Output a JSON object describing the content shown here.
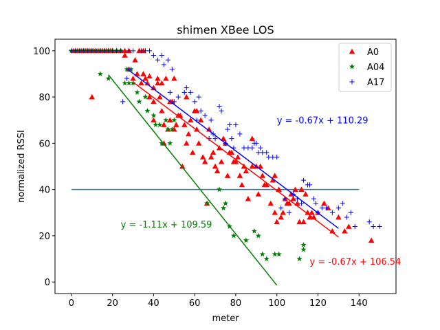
{
  "chart_data": {
    "type": "scatter",
    "title": "shimen XBee LOS",
    "xlabel": "meter",
    "ylabel": "normalized RSSI",
    "xlim": [
      -8,
      158
    ],
    "ylim": [
      -5,
      105
    ],
    "xticks": [
      0,
      20,
      40,
      60,
      80,
      100,
      120,
      140
    ],
    "yticks": [
      0,
      20,
      40,
      60,
      80,
      100
    ],
    "grid": false,
    "legend_position": "top-right",
    "threshold": {
      "y": 40,
      "x_range": [
        0,
        140
      ],
      "color": "#1f77b4"
    },
    "series": [
      {
        "name": "A0",
        "marker": "triangle",
        "color": "#ff0000",
        "points": [
          [
            1,
            100
          ],
          [
            2,
            100
          ],
          [
            3,
            100
          ],
          [
            4,
            100
          ],
          [
            5,
            100
          ],
          [
            6,
            100
          ],
          [
            7,
            100
          ],
          [
            8,
            100
          ],
          [
            9,
            100
          ],
          [
            10,
            100
          ],
          [
            11,
            100
          ],
          [
            12,
            100
          ],
          [
            13,
            100
          ],
          [
            14,
            100
          ],
          [
            15,
            100
          ],
          [
            16,
            100
          ],
          [
            17,
            100
          ],
          [
            18,
            100
          ],
          [
            19,
            100
          ],
          [
            20,
            100
          ],
          [
            22,
            100
          ],
          [
            24,
            100
          ],
          [
            26,
            100
          ],
          [
            28,
            100
          ],
          [
            33,
            100
          ],
          [
            35,
            100
          ],
          [
            10,
            80
          ],
          [
            26,
            98
          ],
          [
            28,
            92
          ],
          [
            30,
            88
          ],
          [
            31,
            96
          ],
          [
            32,
            90
          ],
          [
            34,
            86
          ],
          [
            35,
            90
          ],
          [
            36,
            88
          ],
          [
            37,
            86
          ],
          [
            38,
            80
          ],
          [
            38,
            89
          ],
          [
            40,
            84
          ],
          [
            40,
            78
          ],
          [
            40,
            70
          ],
          [
            42,
            88
          ],
          [
            42,
            86
          ],
          [
            43,
            80
          ],
          [
            44,
            74
          ],
          [
            44,
            86
          ],
          [
            45,
            60
          ],
          [
            45,
            68
          ],
          [
            46,
            88
          ],
          [
            47,
            66
          ],
          [
            48,
            70
          ],
          [
            48,
            78
          ],
          [
            49,
            78
          ],
          [
            50,
            88
          ],
          [
            50,
            66
          ],
          [
            51,
            68
          ],
          [
            52,
            72
          ],
          [
            53,
            72
          ],
          [
            54,
            50
          ],
          [
            55,
            68
          ],
          [
            56,
            60
          ],
          [
            56,
            80
          ],
          [
            57,
            64
          ],
          [
            58,
            70
          ],
          [
            59,
            56
          ],
          [
            60,
            74
          ],
          [
            61,
            74
          ],
          [
            61,
            66
          ],
          [
            62,
            60
          ],
          [
            63,
            70
          ],
          [
            64,
            54
          ],
          [
            65,
            52
          ],
          [
            66,
            34
          ],
          [
            67,
            66
          ],
          [
            68,
            54
          ],
          [
            69,
            56
          ],
          [
            70,
            50
          ],
          [
            71,
            48
          ],
          [
            72,
            58
          ],
          [
            73,
            52
          ],
          [
            74,
            62
          ],
          [
            75,
            60
          ],
          [
            76,
            46
          ],
          [
            77,
            56
          ],
          [
            78,
            56
          ],
          [
            79,
            52
          ],
          [
            80,
            52
          ],
          [
            81,
            54
          ],
          [
            82,
            46
          ],
          [
            83,
            42
          ],
          [
            84,
            50
          ],
          [
            85,
            48
          ],
          [
            86,
            36
          ],
          [
            88,
            62
          ],
          [
            88,
            50
          ],
          [
            90,
            50
          ],
          [
            91,
            38
          ],
          [
            92,
            50
          ],
          [
            93,
            46
          ],
          [
            94,
            42
          ],
          [
            95,
            42
          ],
          [
            97,
            34
          ],
          [
            98,
            44
          ],
          [
            99,
            46
          ],
          [
            99,
            30
          ],
          [
            100,
            26
          ],
          [
            101,
            40
          ],
          [
            102,
            28
          ],
          [
            103,
            30
          ],
          [
            104,
            36
          ],
          [
            105,
            34
          ],
          [
            106,
            34
          ],
          [
            107,
            38
          ],
          [
            108,
            36
          ],
          [
            109,
            40
          ],
          [
            110,
            34
          ],
          [
            111,
            26
          ],
          [
            112,
            40
          ],
          [
            113,
            26
          ],
          [
            114,
            38
          ],
          [
            115,
            30
          ],
          [
            116,
            28
          ],
          [
            117,
            30
          ],
          [
            118,
            28
          ],
          [
            120,
            30
          ],
          [
            123,
            34
          ],
          [
            125,
            32
          ],
          [
            127,
            22
          ],
          [
            130,
            28
          ],
          [
            133,
            22
          ],
          [
            135,
            24
          ],
          [
            146,
            18
          ]
        ]
      },
      {
        "name": "A04",
        "marker": "star",
        "color": "#008000",
        "points": [
          [
            0,
            100
          ],
          [
            2,
            100
          ],
          [
            4,
            100
          ],
          [
            6,
            100
          ],
          [
            8,
            100
          ],
          [
            10,
            100
          ],
          [
            12,
            100
          ],
          [
            14,
            100
          ],
          [
            16,
            100
          ],
          [
            18,
            100
          ],
          [
            20,
            100
          ],
          [
            22,
            100
          ],
          [
            24,
            100
          ],
          [
            14,
            90
          ],
          [
            18,
            88
          ],
          [
            26,
            86
          ],
          [
            27,
            92
          ],
          [
            28,
            86
          ],
          [
            29,
            92
          ],
          [
            30,
            86
          ],
          [
            32,
            82
          ],
          [
            33,
            78
          ],
          [
            36,
            80
          ],
          [
            37,
            74
          ],
          [
            40,
            72
          ],
          [
            41,
            68
          ],
          [
            43,
            68
          ],
          [
            44,
            60
          ],
          [
            46,
            70
          ],
          [
            47,
            66
          ],
          [
            48,
            60
          ],
          [
            49,
            66
          ],
          [
            50,
            70
          ],
          [
            66,
            34
          ],
          [
            72,
            40
          ],
          [
            74,
            32
          ],
          [
            75,
            34
          ],
          [
            77,
            24
          ],
          [
            79,
            20
          ],
          [
            85,
            18
          ],
          [
            89,
            22
          ],
          [
            91,
            20
          ],
          [
            93,
            12
          ],
          [
            95,
            10
          ],
          [
            99,
            12
          ],
          [
            101,
            12
          ],
          [
            111,
            10
          ],
          [
            113,
            16
          ],
          [
            113,
            14
          ]
        ]
      },
      {
        "name": "A17",
        "marker": "plus",
        "color": "#0000ff",
        "points": [
          [
            0,
            100
          ],
          [
            2,
            100
          ],
          [
            4,
            100
          ],
          [
            6,
            100
          ],
          [
            8,
            100
          ],
          [
            10,
            100
          ],
          [
            12,
            100
          ],
          [
            14,
            100
          ],
          [
            16,
            100
          ],
          [
            18,
            100
          ],
          [
            20,
            100
          ],
          [
            22,
            100
          ],
          [
            24,
            100
          ],
          [
            28,
            100
          ],
          [
            30,
            100
          ],
          [
            34,
            100
          ],
          [
            36,
            100
          ],
          [
            38,
            100
          ],
          [
            25,
            78
          ],
          [
            27,
            88
          ],
          [
            28,
            92
          ],
          [
            40,
            98
          ],
          [
            42,
            96
          ],
          [
            44,
            98
          ],
          [
            45,
            94
          ],
          [
            47,
            96
          ],
          [
            48,
            82
          ],
          [
            49,
            92
          ],
          [
            50,
            78
          ],
          [
            52,
            80
          ],
          [
            55,
            82
          ],
          [
            56,
            84
          ],
          [
            58,
            82
          ],
          [
            60,
            78
          ],
          [
            61,
            70
          ],
          [
            62,
            80
          ],
          [
            63,
            74
          ],
          [
            65,
            72
          ],
          [
            67,
            62
          ],
          [
            68,
            70
          ],
          [
            69,
            64
          ],
          [
            70,
            62
          ],
          [
            72,
            76
          ],
          [
            73,
            74
          ],
          [
            75,
            60
          ],
          [
            76,
            66
          ],
          [
            77,
            68
          ],
          [
            78,
            62
          ],
          [
            79,
            58
          ],
          [
            80,
            68
          ],
          [
            82,
            64
          ],
          [
            84,
            58
          ],
          [
            86,
            58
          ],
          [
            88,
            58
          ],
          [
            89,
            60
          ],
          [
            90,
            60
          ],
          [
            91,
            56
          ],
          [
            92,
            58
          ],
          [
            93,
            56
          ],
          [
            95,
            56
          ],
          [
            96,
            54
          ],
          [
            98,
            54
          ],
          [
            100,
            54
          ],
          [
            102,
            32
          ],
          [
            104,
            36
          ],
          [
            106,
            30
          ],
          [
            108,
            38
          ],
          [
            110,
            36
          ],
          [
            112,
            34
          ],
          [
            113,
            44
          ],
          [
            115,
            42
          ],
          [
            116,
            42
          ],
          [
            118,
            36
          ],
          [
            119,
            34
          ],
          [
            120,
            30
          ],
          [
            122,
            32
          ],
          [
            124,
            32
          ],
          [
            127,
            30
          ],
          [
            130,
            32
          ],
          [
            132,
            34
          ],
          [
            134,
            28
          ],
          [
            136,
            30
          ],
          [
            138,
            24
          ],
          [
            145,
            26
          ],
          [
            147,
            24
          ],
          [
            150,
            24
          ]
        ]
      }
    ],
    "fits": [
      {
        "series": "A0",
        "label": "y = -0.67x + 106.54",
        "slope": -0.67,
        "intercept": 106.54,
        "x_range": [
          30,
          130
        ],
        "color": "#ff0000"
      },
      {
        "series": "A04",
        "label": "y = -1.11x + 109.59",
        "slope": -1.11,
        "intercept": 109.59,
        "x_range": [
          18,
          100
        ],
        "color": "#008000"
      },
      {
        "series": "A17",
        "label": "y = -0.67x + 110.29",
        "slope": -0.67,
        "intercept": 110.29,
        "x_range": [
          28,
          130
        ],
        "color": "#0000ff"
      }
    ]
  }
}
